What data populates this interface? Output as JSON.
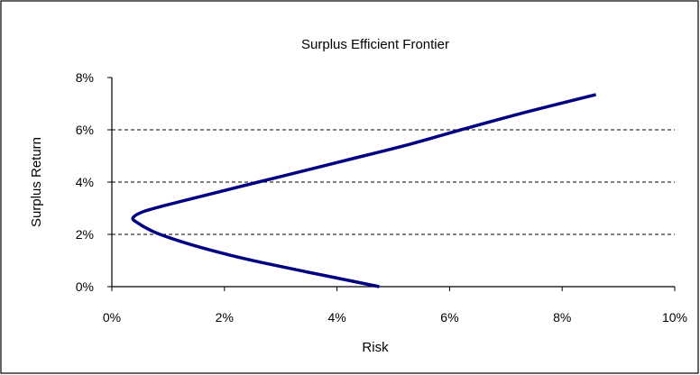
{
  "chart_data": {
    "type": "line",
    "title": "Surplus Efficient Frontier",
    "xlabel": "Risk",
    "ylabel": "Surplus Return",
    "xlim": [
      0,
      10
    ],
    "ylim": [
      0,
      8
    ],
    "x_ticks": [
      "0%",
      "2%",
      "4%",
      "6%",
      "8%",
      "10%"
    ],
    "y_ticks": [
      "0%",
      "2%",
      "4%",
      "6%",
      "8%"
    ],
    "grid": "horizontal dashed",
    "legend": "none",
    "series": [
      {
        "color": "#000080",
        "points": [
          {
            "x": 4.75,
            "y": 0.0
          },
          {
            "x": 3.5,
            "y": 0.55
          },
          {
            "x": 2.4,
            "y": 1.05
          },
          {
            "x": 1.5,
            "y": 1.55
          },
          {
            "x": 0.8,
            "y": 2.05
          },
          {
            "x": 0.45,
            "y": 2.45
          },
          {
            "x": 0.38,
            "y": 2.65
          },
          {
            "x": 0.6,
            "y": 2.9
          },
          {
            "x": 1.2,
            "y": 3.25
          },
          {
            "x": 2.6,
            "y": 4.0
          },
          {
            "x": 4.0,
            "y": 4.75
          },
          {
            "x": 5.3,
            "y": 5.45
          },
          {
            "x": 6.2,
            "y": 6.0
          },
          {
            "x": 7.4,
            "y": 6.7
          },
          {
            "x": 8.6,
            "y": 7.35
          }
        ]
      }
    ]
  }
}
